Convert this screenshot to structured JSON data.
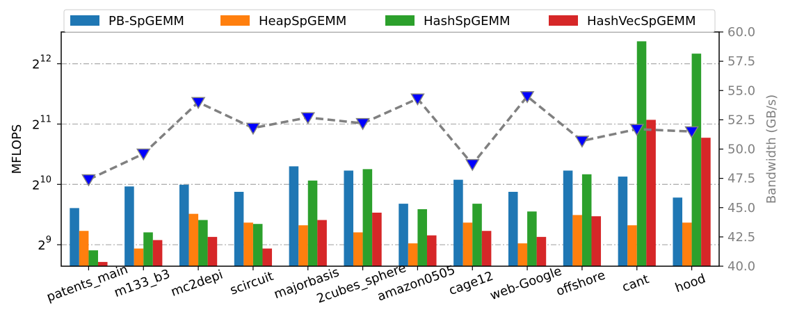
{
  "chart_data": {
    "type": "bar",
    "categories": [
      "patents_main",
      "m133_b3",
      "mc2depi",
      "scircuit",
      "majorbasis",
      "2cubes_sphere",
      "amazon0505",
      "cage12",
      "web-Google",
      "offshore",
      "cant",
      "hood"
    ],
    "y_axis": {
      "label": "MFLOPS",
      "scale": "log2",
      "ylim": [
        400,
        5900
      ],
      "ticks": [
        {
          "value": 512,
          "base": "2",
          "exp": "9"
        },
        {
          "value": 1024,
          "base": "2",
          "exp": "10"
        },
        {
          "value": 2048,
          "base": "2",
          "exp": "11"
        },
        {
          "value": 4096,
          "base": "2",
          "exp": "12"
        }
      ]
    },
    "y2_axis": {
      "label": "Bandwidth (GB/s)",
      "ylim": [
        40.0,
        60.0
      ],
      "ticks": [
        "40.0",
        "42.5",
        "45.0",
        "47.5",
        "50.0",
        "52.5",
        "55.0",
        "57.5",
        "60.0"
      ]
    },
    "series": [
      {
        "name": "PB-SpGEMM",
        "color": "#1f77b4",
        "values": [
          780,
          1000,
          1020,
          940,
          1260,
          1200,
          820,
          1080,
          940,
          1200,
          1120,
          880
        ]
      },
      {
        "name": "HeapSpGEMM",
        "color": "#ff7f0e",
        "values": [
          600,
          490,
          730,
          660,
          640,
          590,
          520,
          660,
          520,
          720,
          640,
          660
        ]
      },
      {
        "name": "HashSpGEMM",
        "color": "#2ca02c",
        "values": [
          480,
          590,
          680,
          650,
          1070,
          1220,
          770,
          820,
          750,
          1150,
          5300,
          4600
        ]
      },
      {
        "name": "HashVecSpGEMM",
        "color": "#d62728",
        "values": [
          420,
          540,
          560,
          490,
          680,
          740,
          570,
          600,
          560,
          710,
          2150,
          1750
        ]
      }
    ],
    "bandwidth_line": {
      "color": "#808080",
      "marker": "blue-down-triangle",
      "values": [
        47.4,
        49.6,
        54.0,
        51.8,
        52.7,
        52.2,
        54.3,
        48.7,
        54.5,
        50.7,
        51.7,
        51.5
      ]
    },
    "legend": {
      "position": "top",
      "columns": 4
    },
    "grid": {
      "axis": "y",
      "style": "dash-dot",
      "color": "#b0b0b0"
    }
  }
}
